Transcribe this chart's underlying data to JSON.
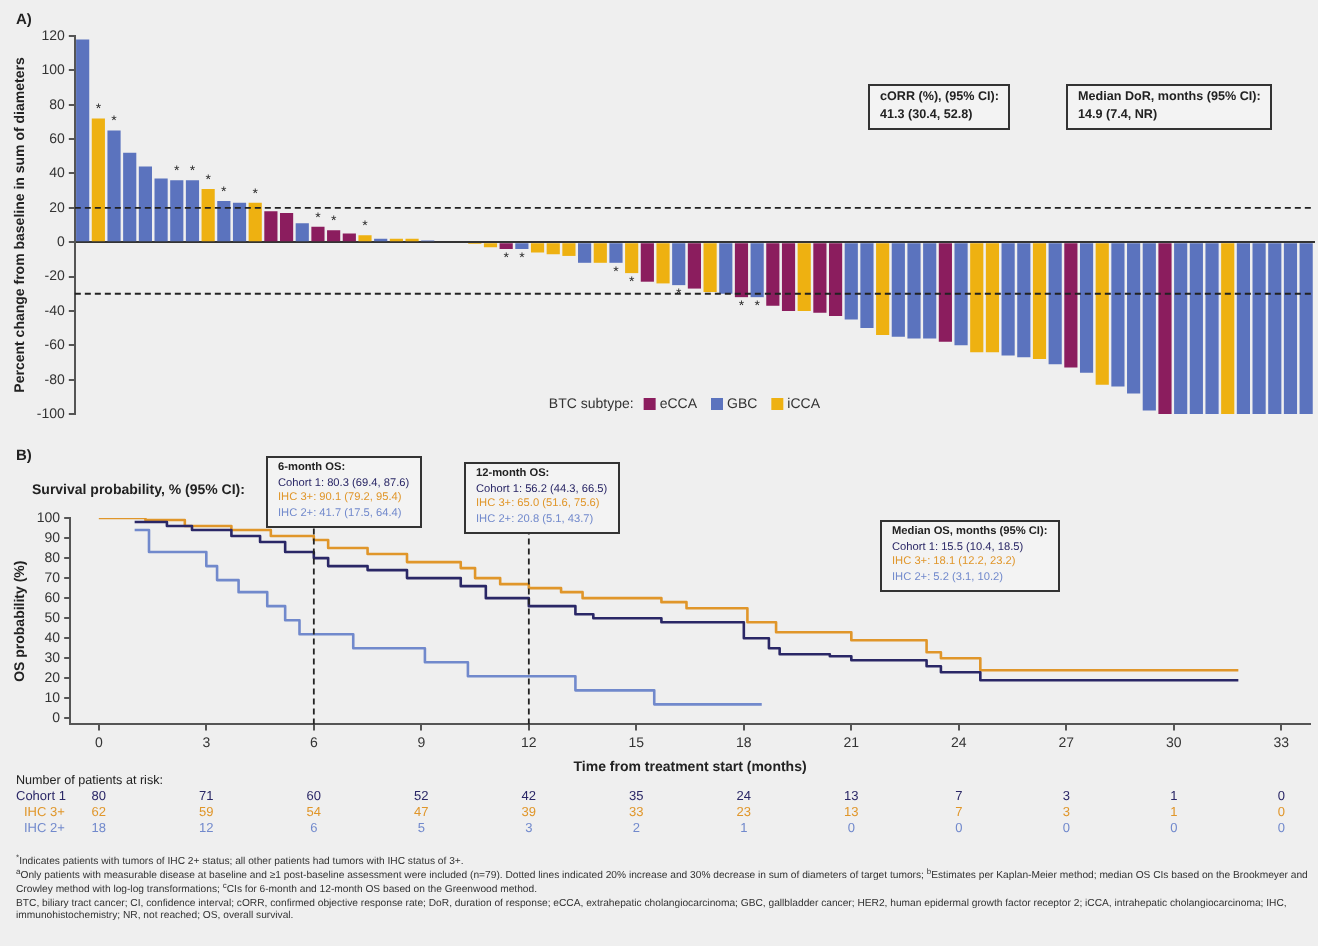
{
  "chart_data": [
    {
      "type": "bar",
      "ylabel": "Percent change from baseline in sum of diameters",
      "categories": [
        null,
        null,
        null,
        null,
        null,
        null,
        null,
        null,
        null,
        null,
        null,
        null,
        null,
        null,
        null,
        null,
        null,
        null,
        null,
        null,
        null,
        null,
        null,
        null,
        null,
        null,
        null,
        null,
        null,
        null,
        null,
        null,
        null,
        null,
        null,
        null,
        null,
        null,
        null,
        null,
        null,
        null,
        null,
        null,
        null,
        null,
        null,
        null,
        null,
        null,
        null,
        null,
        null,
        null,
        null,
        null,
        null,
        null,
        null,
        null,
        null,
        null,
        null,
        null,
        null,
        null,
        null,
        null,
        null,
        null,
        null,
        null,
        null,
        null,
        null,
        null,
        null,
        null,
        null
      ],
      "series": [
        {
          "name": "eCCA",
          "color": "#8b1d5e",
          "values": [
            null,
            null,
            null,
            null,
            null,
            null,
            null,
            null,
            null,
            null,
            null,
            null,
            18,
            17,
            null,
            9,
            7,
            5,
            null,
            null,
            null,
            null,
            null,
            null,
            null,
            null,
            null,
            -4,
            null,
            null,
            null,
            null,
            null,
            null,
            null,
            null,
            -23,
            null,
            null,
            -27,
            null,
            null,
            -32,
            null,
            -37,
            -40,
            null,
            -41,
            -43,
            null,
            null,
            null,
            null,
            null,
            null,
            -58,
            null,
            null,
            null,
            null,
            null,
            null,
            null,
            -73,
            null,
            null,
            null,
            null,
            null,
            -100,
            null,
            null,
            null,
            null,
            null,
            null,
            null,
            null,
            null
          ],
          "value_labels": [
            null,
            null,
            null,
            null,
            null,
            null,
            null,
            null,
            null,
            null,
            null,
            null,
            null,
            null,
            null,
            "*",
            "*",
            null,
            null,
            null,
            null,
            null,
            null,
            null,
            null,
            null,
            null,
            "*",
            null,
            null,
            null,
            null,
            null,
            null,
            null,
            null,
            null,
            null,
            null,
            null,
            null,
            null,
            "*",
            null,
            null,
            null,
            null,
            null,
            null,
            null,
            null,
            null,
            null,
            null,
            null,
            null,
            null,
            null,
            null,
            null,
            null,
            null,
            null,
            null,
            null,
            null,
            null,
            null,
            null,
            null,
            null,
            null,
            null,
            null,
            null,
            null,
            null,
            null,
            null
          ]
        },
        {
          "name": "GBC",
          "color": "#5b73be",
          "values": [
            118,
            null,
            65,
            52,
            44,
            37,
            36,
            36,
            null,
            24,
            23,
            null,
            null,
            null,
            11,
            null,
            null,
            null,
            null,
            2,
            null,
            null,
            1,
            0,
            null,
            null,
            null,
            null,
            -4,
            null,
            null,
            null,
            -12,
            null,
            -12,
            null,
            null,
            null,
            -25,
            null,
            null,
            -30,
            null,
            -32,
            null,
            null,
            null,
            null,
            null,
            -45,
            -50,
            null,
            -55,
            -56,
            -56,
            null,
            -60,
            null,
            null,
            -66,
            -67,
            null,
            -71,
            null,
            -76,
            null,
            -84,
            -88,
            -98,
            null,
            -100,
            -100,
            -100,
            null,
            -100,
            -100,
            -100,
            -100,
            -100
          ],
          "value_labels": [
            null,
            null,
            "*",
            null,
            null,
            null,
            "*",
            "*",
            null,
            "*",
            null,
            null,
            null,
            null,
            null,
            null,
            null,
            null,
            null,
            null,
            null,
            null,
            null,
            null,
            null,
            null,
            null,
            null,
            "*",
            null,
            null,
            null,
            null,
            null,
            "*",
            null,
            null,
            null,
            "*",
            null,
            null,
            null,
            null,
            "*",
            null,
            null,
            null,
            null,
            null,
            null,
            null,
            null,
            null,
            null,
            null,
            null,
            null,
            null,
            null,
            null,
            null,
            null,
            null,
            null,
            null,
            null,
            null,
            null,
            null,
            null,
            null,
            null,
            null,
            null,
            null,
            null,
            null,
            null,
            null
          ]
        },
        {
          "name": "iCCA",
          "color": "#eeb111",
          "values": [
            null,
            72,
            null,
            null,
            null,
            null,
            null,
            null,
            31,
            null,
            null,
            23,
            null,
            null,
            null,
            null,
            null,
            null,
            4,
            null,
            2,
            2,
            null,
            null,
            0,
            -1,
            -3,
            null,
            null,
            -6,
            -7,
            -8,
            null,
            -12,
            null,
            -18,
            null,
            -24,
            null,
            null,
            -29,
            null,
            null,
            null,
            null,
            null,
            -40,
            null,
            null,
            null,
            null,
            -54,
            null,
            null,
            null,
            null,
            null,
            -64,
            -64,
            null,
            null,
            -68,
            null,
            null,
            null,
            -83,
            null,
            null,
            null,
            null,
            null,
            null,
            null,
            -100,
            null,
            null,
            null,
            null,
            null
          ],
          "value_labels": [
            null,
            "*",
            null,
            null,
            null,
            null,
            null,
            null,
            "*",
            null,
            null,
            "*",
            null,
            null,
            null,
            null,
            null,
            null,
            "*",
            null,
            null,
            null,
            null,
            null,
            null,
            null,
            null,
            null,
            null,
            null,
            null,
            null,
            null,
            null,
            null,
            "*",
            null,
            null,
            null,
            null,
            null,
            null,
            null,
            null,
            null,
            null,
            null,
            null,
            null,
            null,
            null,
            null,
            null,
            null,
            null,
            null,
            null,
            null,
            null,
            null,
            null,
            null,
            null,
            null,
            null,
            null,
            null,
            null,
            null,
            null,
            null,
            null,
            null,
            null,
            null,
            null,
            null,
            null,
            null
          ]
        }
      ],
      "ylim": [
        -100,
        120
      ],
      "yticks": [
        -100,
        -80,
        -60,
        -40,
        -20,
        0,
        20,
        40,
        60,
        80,
        100,
        120
      ],
      "ref_lines": [
        {
          "axis": "y",
          "value": 20,
          "line_style": "dashed"
        },
        {
          "axis": "y",
          "value": -30,
          "line_style": "dashed"
        }
      ],
      "legend": "bottom",
      "legend_title": "BTC subtype:",
      "annotations": [
        "A)",
        "cORR (%), (95% CI):\n41.3 (30.4, 52.8)",
        "Median DoR, months (95% CI):\n14.9 (7.4, NR)"
      ]
    },
    {
      "type": "step",
      "xlabel": "Time from treatment start (months)",
      "ylabel": "OS probability (%)",
      "series": [
        {
          "name": "Cohort 1",
          "color": "#2a2766",
          "x": [
            1.0,
            1.9,
            2.6,
            3.7,
            4.5,
            5.2,
            6.0,
            6.4,
            7.5,
            8.6,
            10.1,
            10.8,
            12.0,
            13.3,
            13.8,
            15.7,
            18.0,
            18.7,
            19.0,
            20.4,
            21.0,
            23.1,
            23.5,
            24.6,
            31.8
          ],
          "values": [
            98,
            96,
            94,
            91,
            88,
            83,
            80,
            76,
            74,
            70,
            66,
            60,
            56,
            52,
            50,
            48,
            40,
            35,
            32,
            31,
            29,
            26,
            23,
            19,
            19
          ]
        },
        {
          "name": "IHC 3+",
          "color": "#e0962a",
          "x": [
            0,
            1.3,
            2.4,
            3.7,
            4.8,
            6.0,
            6.4,
            7.5,
            8.6,
            10.1,
            10.5,
            11.2,
            12.0,
            12.9,
            13.5,
            15.7,
            16.4,
            18.1,
            18.9,
            21.0,
            23.1,
            23.5,
            24.6,
            31.8
          ],
          "values": [
            100,
            99,
            96,
            94,
            91,
            89,
            85,
            82,
            78,
            75,
            70,
            67,
            65,
            63,
            60,
            58,
            55,
            48,
            43,
            39,
            33,
            30,
            24,
            24
          ]
        },
        {
          "name": "IHC 2+",
          "color": "#7189cc",
          "x": [
            1.0,
            1.4,
            3.0,
            3.3,
            3.9,
            4.7,
            5.2,
            5.6,
            7.1,
            9.1,
            10.3,
            13.3,
            15.5,
            18.5
          ],
          "values": [
            94,
            83,
            76,
            69,
            63,
            56,
            49,
            42,
            35,
            28,
            21,
            14,
            7,
            7
          ]
        }
      ],
      "xlim": [
        -0.8,
        33.8
      ],
      "xticks": [
        0,
        3,
        6,
        9,
        12,
        15,
        18,
        21,
        24,
        27,
        30,
        33
      ],
      "ylim": [
        -3,
        100
      ],
      "yticks": [
        0,
        10,
        20,
        30,
        40,
        50,
        60,
        70,
        80,
        90,
        100
      ],
      "ref_lines": [
        {
          "axis": "x",
          "value": 6,
          "line_style": "dashed"
        },
        {
          "axis": "x",
          "value": 12,
          "line_style": "dashed"
        }
      ],
      "annotations": [
        "B)",
        "Survival probability, % (95% CI):",
        "6-month OS:\nCohort 1: 80.3 (69.4, 87.6)\nIHC 3+: 90.1 (79.2, 95.4)\nIHC 2+: 41.7 (17.5, 64.4)",
        "12-month OS:\nCohort 1: 56.2 (44.3, 66.5)\nIHC 3+: 65.0 (51.6, 75.6)\nIHC 2+: 20.8 (5.1, 43.7)",
        "Median OS, months (95% CI):\nCohort 1: 15.5 (10.4, 18.5)\nIHC 3+: 18.1 (12.2, 23.2)\nIHC 2+: 5.2 (3.1, 10.2)",
        "Number of patients at risk:",
        "80 71 60 52 42 35 24 13 7 3 1 0",
        "62 59 54 47 39 33 23 13 7 3 1 0",
        "18 12 6 5 3 2 1 0 0 0 0 0",
        "$^{*}$Indicates patients with tumors of IHC 2+ status; all other patients had tumors with IHC status of 3+.",
        "$^{a}$Only patients with measurable disease at baseline and ≥1 post-baseline assessment were included (n=79). Dotted lines indicated 20% increase and 30% decrease in sum of diameters of target tumors; $^{b}$Estimates per Kaplan-Meier method; median OS CIs based on the Brookmeyer and Crowley method with log-log transformations; $^{c}$CIs for 6-month and 12-month OS based on the Greenwood method.",
        "BTC, biliary tract cancer; CI, confidence interval; cORR, confirmed objective response rate; DoR, duration of response; eCCA, extrahepatic cholangiocarcinoma; GBC, gallbladder cancer; HER2, human epidermal growth factor receptor 2; iCCA, intrahepatic cholangiocarcinoma; IHC, immunohistochemistry; NR, not reached; OS, overall survival."
      ]
    }
  ]
}
